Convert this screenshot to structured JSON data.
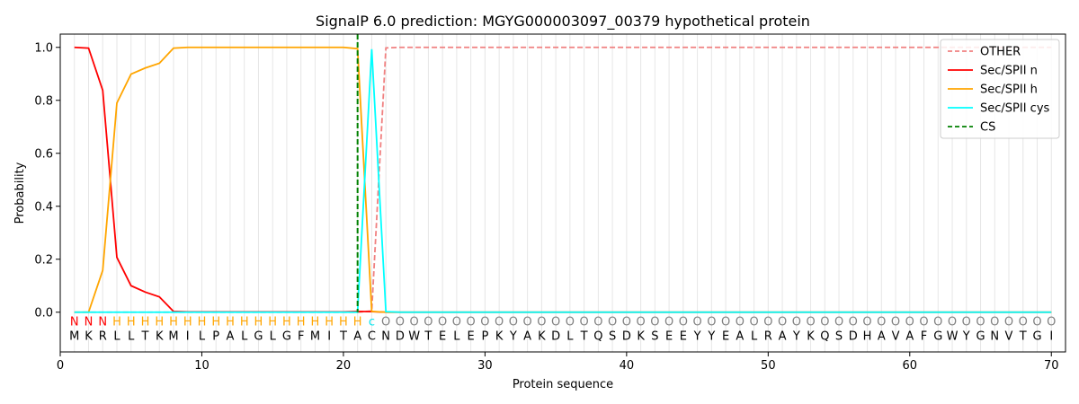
{
  "chart_data": {
    "type": "line",
    "title": "SignalP 6.0 prediction: MGYG000003097_00379 hypothetical protein",
    "xlabel": "Protein sequence",
    "ylabel": "Probability",
    "xlim": [
      0,
      71
    ],
    "ylim": [
      -0.15,
      1.05
    ],
    "xticks": [
      0,
      10,
      20,
      30,
      40,
      50,
      60,
      70
    ],
    "yticks": [
      0.0,
      0.2,
      0.4,
      0.6,
      0.8,
      1.0
    ],
    "ytick_labels": [
      "0.0",
      "0.2",
      "0.4",
      "0.6",
      "0.8",
      "1.0"
    ],
    "grid": "vertical lines at each residue",
    "legend_position": "top-right",
    "sequence": [
      "M",
      "K",
      "R",
      "L",
      "L",
      "T",
      "K",
      "M",
      "I",
      "L",
      "P",
      "A",
      "L",
      "G",
      "L",
      "G",
      "F",
      "M",
      "I",
      "T",
      "A",
      "C",
      "N",
      "D",
      "W",
      "T",
      "E",
      "L",
      "E",
      "P",
      "K",
      "Y",
      "A",
      "K",
      "D",
      "L",
      "T",
      "Q",
      "S",
      "D",
      "K",
      "S",
      "E",
      "E",
      "Y",
      "Y",
      "E",
      "A",
      "L",
      "R",
      "A",
      "Y",
      "K",
      "Q",
      "S",
      "D",
      "H",
      "A",
      "V",
      "A",
      "F",
      "G",
      "W",
      "Y",
      "G",
      "N",
      "V",
      "T",
      "G",
      "I"
    ],
    "labels": [
      "N",
      "N",
      "N",
      "H",
      "H",
      "H",
      "H",
      "H",
      "H",
      "H",
      "H",
      "H",
      "H",
      "H",
      "H",
      "H",
      "H",
      "H",
      "H",
      "H",
      "H",
      "c",
      "O",
      "O",
      "O",
      "O",
      "O",
      "O",
      "O",
      "O",
      "O",
      "O",
      "O",
      "O",
      "O",
      "O",
      "O",
      "O",
      "O",
      "O",
      "O",
      "O",
      "O",
      "O",
      "O",
      "O",
      "O",
      "O",
      "O",
      "O",
      "O",
      "O",
      "O",
      "O",
      "O",
      "O",
      "O",
      "O",
      "O",
      "O",
      "O",
      "O",
      "O",
      "O",
      "O",
      "O",
      "O",
      "O",
      "O",
      "O"
    ],
    "label_colors": {
      "N": "#ff0000",
      "H": "#ffa500",
      "c": "#00e5ee",
      "O": "#808080"
    },
    "series": [
      {
        "name": "OTHER",
        "color": "#f08080",
        "dash": true,
        "values": [
          0,
          0,
          0,
          0,
          0,
          0,
          0,
          0,
          0,
          0,
          0,
          0,
          0,
          0,
          0,
          0,
          0,
          0,
          0,
          0,
          0,
          0.005,
          0.998,
          1,
          1,
          1,
          1,
          1,
          1,
          1,
          1,
          1,
          1,
          1,
          1,
          1,
          1,
          1,
          1,
          1,
          1,
          1,
          1,
          1,
          1,
          1,
          1,
          1,
          1,
          1,
          1,
          1,
          1,
          1,
          1,
          1,
          1,
          1,
          1,
          1,
          1,
          1,
          1,
          1,
          1,
          1,
          1,
          1,
          1,
          1
        ]
      },
      {
        "name": "Sec/SPII n",
        "color": "#ff0000",
        "dash": false,
        "values": [
          1.0,
          0.997,
          0.838,
          0.207,
          0.1,
          0.076,
          0.058,
          0.003,
          0.001,
          0.001,
          0.001,
          0.001,
          0.001,
          0.001,
          0.001,
          0.001,
          0.001,
          0.001,
          0.001,
          0.001,
          0.003,
          0.002,
          0,
          0,
          0,
          0,
          0,
          0,
          0,
          0,
          0,
          0,
          0,
          0,
          0,
          0,
          0,
          0,
          0,
          0,
          0,
          0,
          0,
          0,
          0,
          0,
          0,
          0,
          0,
          0,
          0,
          0,
          0,
          0,
          0,
          0,
          0,
          0,
          0,
          0,
          0,
          0,
          0,
          0,
          0,
          0,
          0,
          0,
          0,
          0
        ]
      },
      {
        "name": "Sec/SPII h",
        "color": "#ffa500",
        "dash": false,
        "values": [
          0,
          0,
          0.158,
          0.79,
          0.899,
          0.922,
          0.94,
          0.997,
          1.0,
          1.0,
          1.0,
          1.0,
          1.0,
          1.0,
          1.0,
          1.0,
          1.0,
          1.0,
          1.0,
          1.0,
          0.995,
          0.003,
          0,
          0,
          0,
          0,
          0,
          0,
          0,
          0,
          0,
          0,
          0,
          0,
          0,
          0,
          0,
          0,
          0,
          0,
          0,
          0,
          0,
          0,
          0,
          0,
          0,
          0,
          0,
          0,
          0,
          0,
          0,
          0,
          0,
          0,
          0,
          0,
          0,
          0,
          0,
          0,
          0,
          0,
          0,
          0,
          0,
          0,
          0,
          0
        ]
      },
      {
        "name": "Sec/SPII cys",
        "color": "#00ffff",
        "dash": false,
        "values": [
          0,
          0,
          0,
          0,
          0,
          0,
          0,
          0,
          0,
          0,
          0,
          0,
          0,
          0,
          0,
          0,
          0,
          0,
          0,
          0,
          0,
          0.993,
          0.002,
          0,
          0,
          0,
          0,
          0,
          0,
          0,
          0,
          0,
          0,
          0,
          0,
          0,
          0,
          0,
          0,
          0,
          0,
          0,
          0,
          0,
          0,
          0,
          0,
          0,
          0,
          0,
          0,
          0,
          0,
          0,
          0,
          0,
          0,
          0,
          0,
          0,
          0,
          0,
          0,
          0,
          0,
          0,
          0,
          0,
          0,
          0
        ]
      },
      {
        "name": "CS",
        "color": "#008000",
        "dash": true,
        "vline_x": 21
      }
    ]
  }
}
